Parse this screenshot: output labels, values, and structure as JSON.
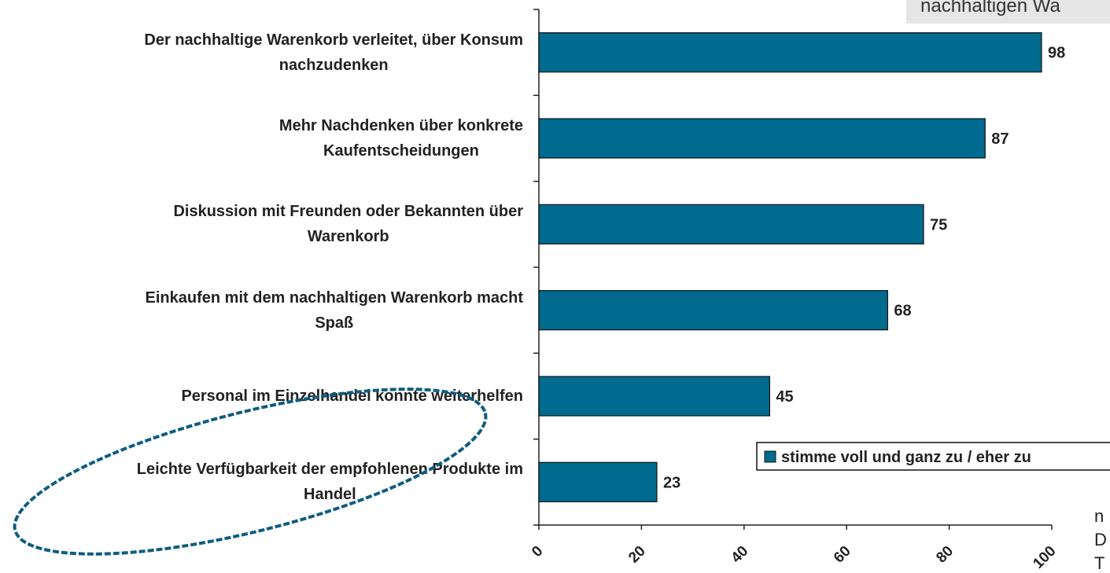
{
  "chart_data": {
    "type": "barh",
    "categories": [
      "Der nachhaltige Warenkorb verleitet, über Konsum\nnachzudenken",
      "Mehr Nachdenken über konkrete\nKaufentscheidungen",
      "Diskussion mit Freunden oder Bekannten über\nWarenkorb",
      "Einkaufen mit dem nachhaltigen Warenkorb macht\nSpaß",
      "Personal im Einzelhandel konnte weiterhelfen",
      "Leichte Verfügbarkeit der empfohlenen Produkte im\nHandel"
    ],
    "series": [
      {
        "name": "stimme voll und ganz zu / eher zu",
        "color": "#016a8f",
        "values": [
          98,
          87,
          75,
          68,
          45,
          23
        ]
      }
    ],
    "xlim": [
      0,
      100
    ],
    "xticks": [
      0,
      20,
      40,
      60,
      80,
      100
    ],
    "annotations": [
      "nachhaltigen Wa",
      "n",
      "D",
      "T"
    ]
  }
}
